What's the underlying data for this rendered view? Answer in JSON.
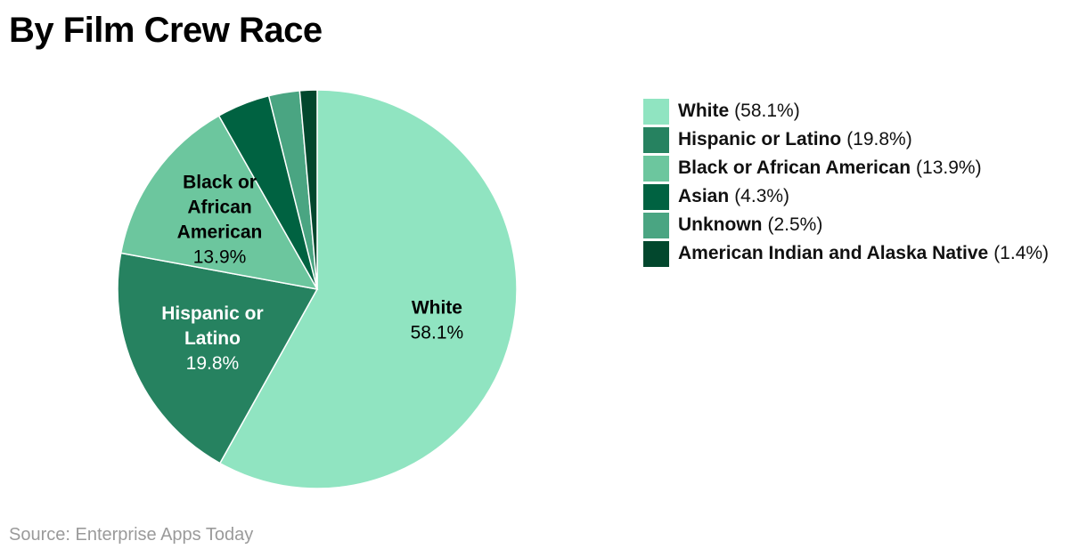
{
  "title": "By Film Crew Race",
  "source": "Source: Enterprise Apps Today",
  "chart_data": {
    "type": "pie",
    "title": "By Film Crew Race",
    "legend_position": "right",
    "slices": [
      {
        "label": "White",
        "value": 58.1,
        "value_label": "58.1%",
        "color": "#90e4c1",
        "inside_label": [
          "White"
        ],
        "inside_text_color": "#000000"
      },
      {
        "label": "Hispanic or Latino",
        "value": 19.8,
        "value_label": "19.8%",
        "color": "#268260",
        "inside_label": [
          "Hispanic or",
          "Latino"
        ],
        "inside_text_color": "#ffffff"
      },
      {
        "label": "Black or African American",
        "value": 13.9,
        "value_label": "13.9%",
        "color": "#6cc69e",
        "inside_label": [
          "Black or",
          "African",
          "American"
        ],
        "inside_text_color": "#000000"
      },
      {
        "label": "Asian",
        "value": 4.3,
        "value_label": "4.3%",
        "color": "#006241",
        "inside_label": [],
        "inside_text_color": "#ffffff"
      },
      {
        "label": "Unknown",
        "value": 2.5,
        "value_label": "2.5%",
        "color": "#4aa582",
        "inside_label": [],
        "inside_text_color": "#ffffff"
      },
      {
        "label": "American Indian and Alaska Native",
        "value": 1.4,
        "value_label": "1.4%",
        "color": "#02472d",
        "inside_label": [],
        "inside_text_color": "#ffffff"
      }
    ]
  }
}
